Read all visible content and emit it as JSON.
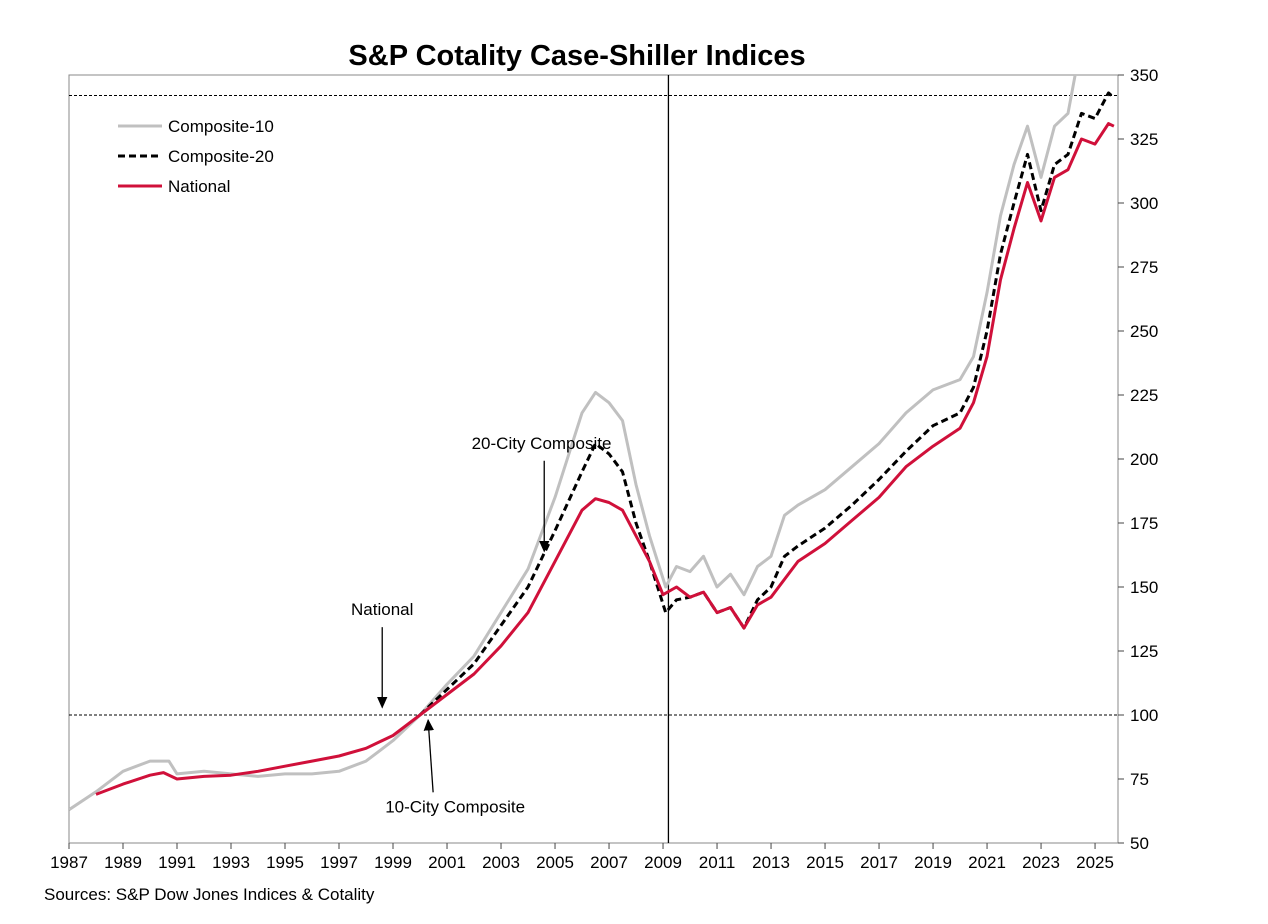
{
  "chart_data": {
    "type": "line",
    "title": "S&P Cotality Case-Shiller Indices",
    "source": "Sources:  S&P Dow Jones Indices & Cotality",
    "xlabel": "",
    "ylabel": "",
    "xlim": [
      1987,
      2025.85
    ],
    "ylim": [
      50,
      350
    ],
    "y_ticks": [
      50,
      75,
      100,
      125,
      150,
      175,
      200,
      225,
      250,
      275,
      300,
      325,
      350
    ],
    "x_ticks": [
      1987,
      1989,
      1991,
      1993,
      1995,
      1997,
      1999,
      2001,
      2003,
      2005,
      2007,
      2009,
      2011,
      2013,
      2015,
      2017,
      2019,
      2021,
      2023,
      2025
    ],
    "y_axis_position": "right",
    "legend_placement": "top-left",
    "reference_lines": {
      "horizontal": [
        100,
        342
      ],
      "vertical": [
        2009.2
      ]
    },
    "series": [
      {
        "name": "Composite-10",
        "color": "#c0c0c0",
        "style": "solid",
        "points": [
          [
            1987,
            63
          ],
          [
            1988,
            70
          ],
          [
            1989,
            78
          ],
          [
            1990,
            82
          ],
          [
            1990.7,
            82
          ],
          [
            1991,
            77
          ],
          [
            1992,
            78
          ],
          [
            1993,
            77
          ],
          [
            1994,
            76
          ],
          [
            1995,
            77
          ],
          [
            1996,
            77
          ],
          [
            1997,
            78
          ],
          [
            1998,
            82
          ],
          [
            1999,
            90
          ],
          [
            2000,
            100
          ],
          [
            2001,
            112
          ],
          [
            2002,
            123
          ],
          [
            2003,
            140
          ],
          [
            2004,
            157
          ],
          [
            2005,
            185
          ],
          [
            2006,
            218
          ],
          [
            2006.5,
            226
          ],
          [
            2007,
            222
          ],
          [
            2007.5,
            215
          ],
          [
            2008,
            190
          ],
          [
            2008.5,
            170
          ],
          [
            2009.1,
            150
          ],
          [
            2009.5,
            158
          ],
          [
            2010,
            156
          ],
          [
            2010.5,
            162
          ],
          [
            2011,
            150
          ],
          [
            2011.5,
            155
          ],
          [
            2012,
            147
          ],
          [
            2012.5,
            158
          ],
          [
            2013,
            162
          ],
          [
            2013.5,
            178
          ],
          [
            2014,
            182
          ],
          [
            2015,
            188
          ],
          [
            2016,
            197
          ],
          [
            2017,
            206
          ],
          [
            2018,
            218
          ],
          [
            2019,
            227
          ],
          [
            2020,
            231
          ],
          [
            2020.5,
            240
          ],
          [
            2021,
            265
          ],
          [
            2021.5,
            295
          ],
          [
            2022,
            315
          ],
          [
            2022.5,
            330
          ],
          [
            2023,
            310
          ],
          [
            2023.5,
            330
          ],
          [
            2024,
            335
          ],
          [
            2024.3,
            352
          ],
          [
            2025.8,
            360
          ]
        ]
      },
      {
        "name": "Composite-20",
        "color": "#000000",
        "style": "dashed",
        "points": [
          [
            2000,
            100
          ],
          [
            2001,
            110
          ],
          [
            2002,
            120
          ],
          [
            2003,
            135
          ],
          [
            2004,
            150
          ],
          [
            2005,
            172
          ],
          [
            2006,
            195
          ],
          [
            2006.5,
            206
          ],
          [
            2007,
            202
          ],
          [
            2007.5,
            195
          ],
          [
            2008,
            175
          ],
          [
            2008.5,
            160
          ],
          [
            2009.1,
            140
          ],
          [
            2009.5,
            145
          ],
          [
            2010,
            146
          ],
          [
            2010.5,
            148
          ],
          [
            2011,
            140
          ],
          [
            2011.5,
            142
          ],
          [
            2012,
            134
          ],
          [
            2012.5,
            145
          ],
          [
            2013,
            150
          ],
          [
            2013.5,
            162
          ],
          [
            2014,
            166
          ],
          [
            2015,
            173
          ],
          [
            2016,
            182
          ],
          [
            2017,
            192
          ],
          [
            2018,
            203
          ],
          [
            2019,
            213
          ],
          [
            2020,
            218
          ],
          [
            2020.5,
            228
          ],
          [
            2021,
            250
          ],
          [
            2021.5,
            280
          ],
          [
            2022,
            300
          ],
          [
            2022.5,
            319
          ],
          [
            2023,
            297
          ],
          [
            2023.5,
            315
          ],
          [
            2024,
            319
          ],
          [
            2024.5,
            335
          ],
          [
            2025,
            333
          ],
          [
            2025.5,
            343
          ],
          [
            2025.7,
            341
          ]
        ]
      },
      {
        "name": "National",
        "color": "#d0103a",
        "style": "solid",
        "points": [
          [
            1988,
            69
          ],
          [
            1989,
            73
          ],
          [
            1990,
            76.5
          ],
          [
            1990.5,
            77.5
          ],
          [
            1991,
            75
          ],
          [
            1992,
            76
          ],
          [
            1993,
            76.5
          ],
          [
            1994,
            78
          ],
          [
            1995,
            80
          ],
          [
            1996,
            82
          ],
          [
            1997,
            84
          ],
          [
            1998,
            87
          ],
          [
            1999,
            92
          ],
          [
            2000,
            100
          ],
          [
            2001,
            108
          ],
          [
            2002,
            116
          ],
          [
            2003,
            127
          ],
          [
            2004,
            140
          ],
          [
            2005,
            160
          ],
          [
            2006,
            180
          ],
          [
            2006.5,
            184.5
          ],
          [
            2007,
            183
          ],
          [
            2007.5,
            180
          ],
          [
            2008,
            170
          ],
          [
            2008.5,
            160
          ],
          [
            2009,
            147
          ],
          [
            2009.5,
            150
          ],
          [
            2010,
            146
          ],
          [
            2010.5,
            148
          ],
          [
            2011,
            140
          ],
          [
            2011.5,
            142
          ],
          [
            2012,
            134
          ],
          [
            2012.5,
            143
          ],
          [
            2013,
            146
          ],
          [
            2014,
            160
          ],
          [
            2015,
            167
          ],
          [
            2016,
            176
          ],
          [
            2017,
            185
          ],
          [
            2018,
            197
          ],
          [
            2019,
            205
          ],
          [
            2020,
            212
          ],
          [
            2020.5,
            222
          ],
          [
            2021,
            240
          ],
          [
            2021.5,
            270
          ],
          [
            2022,
            290
          ],
          [
            2022.5,
            308
          ],
          [
            2023,
            293
          ],
          [
            2023.5,
            310
          ],
          [
            2024,
            313
          ],
          [
            2024.5,
            325
          ],
          [
            2025,
            323
          ],
          [
            2025.5,
            331
          ],
          [
            2025.7,
            330
          ]
        ]
      }
    ],
    "annotations": [
      {
        "text": "20-City Composite",
        "x": 2004.5,
        "y": 204,
        "arrow_to": [
          2004.6,
          164
        ]
      },
      {
        "text": "National",
        "x": 1998.6,
        "y": 139,
        "arrow_to": [
          1998.6,
          103
        ]
      },
      {
        "text": "10-City Composite",
        "x": 2001.3,
        "y": 62,
        "arrow_to": [
          2000.3,
          98
        ]
      }
    ]
  }
}
